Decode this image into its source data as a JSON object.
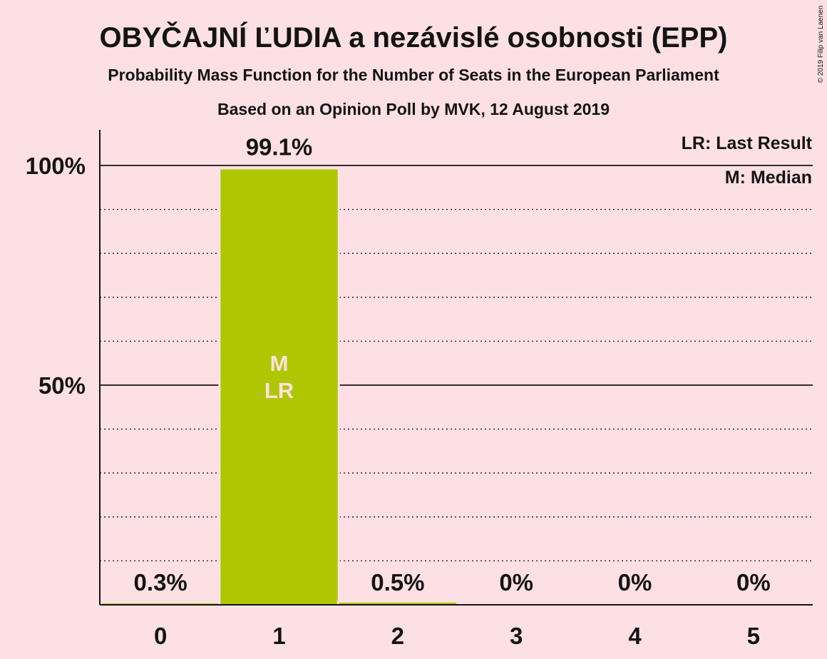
{
  "title": "OBYČAJNÍ ĽUDIA a nezávislé osobnosti (EPP)",
  "subtitle1": "Probability Mass Function for the Number of Seats in the European Parliament",
  "subtitle2": "Based on an Opinion Poll by MVK, 12 August 2019",
  "copyright": "© 2019 Filip van Laenen",
  "legend": {
    "last_result": "LR: Last Result",
    "median": "M: Median"
  },
  "colors": {
    "bar": "#afc700",
    "background": "#fde0e3",
    "text": "#141414"
  },
  "chart_data": {
    "type": "bar",
    "categories": [
      "0",
      "1",
      "2",
      "3",
      "4",
      "5"
    ],
    "values": [
      0.3,
      99.1,
      0.5,
      0,
      0,
      0
    ],
    "value_labels": [
      "0.3%",
      "99.1%",
      "0.5%",
      "0%",
      "0%",
      "0%"
    ],
    "ylim": [
      0,
      100
    ],
    "yticks": [
      {
        "value": 50,
        "label": "50%"
      },
      {
        "value": 100,
        "label": "100%"
      }
    ],
    "minor_grid_step": 10,
    "median_index": 1,
    "last_result_index": 1,
    "median_marker": "M",
    "last_result_marker": "LR",
    "grid": true,
    "legend_position": "top-right"
  }
}
